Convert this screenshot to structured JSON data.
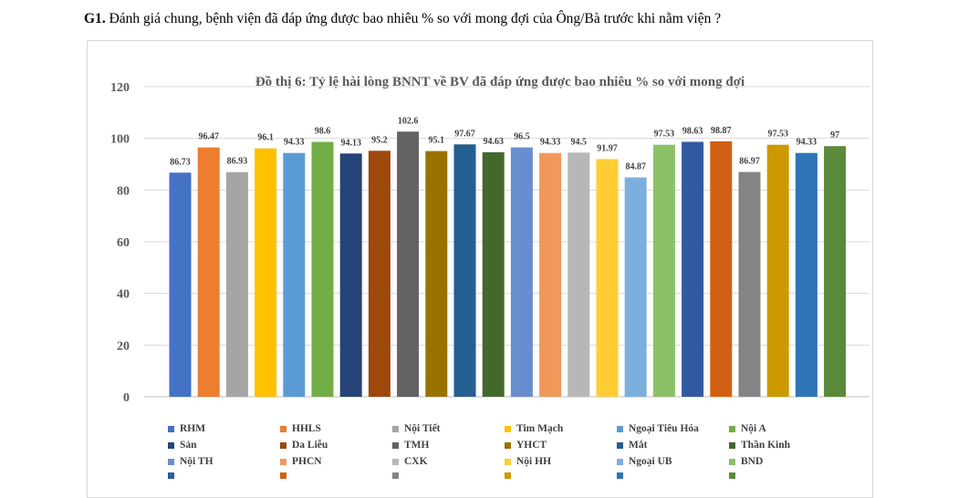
{
  "question": {
    "prefix": "G1",
    "dot": ".",
    "text": " Đánh giá chung, bệnh viện đã đáp ứng được bao nhiêu % so với mong đợi của Ông/Bà trước khi nằm viện ?"
  },
  "chart_data": {
    "type": "bar",
    "title": "Đồ thị 6: Tỷ lệ hài lòng BNNT về BV đã đáp ứng được bao nhiêu % so với mong đợi",
    "xlabel": "",
    "ylabel": "",
    "ylim": [
      0,
      120
    ],
    "yticks": [
      "0",
      "20",
      "40",
      "60",
      "80",
      "100",
      "120"
    ],
    "grid": true,
    "legend_position": "bottom",
    "categories": [
      "RHM",
      "HHLS",
      "Nội Tiết",
      "Tim Mạch",
      "Ngoại Tiêu Hóa",
      "Nội A",
      "Sản",
      "Da Liễu",
      "TMH",
      "YHCT",
      "Mắt",
      "Thần Kinh",
      "Nội TH",
      "PHCN",
      "CXK",
      "Nội HH",
      "Ngoại UB",
      "BND",
      "",
      "",
      "",
      "",
      "",
      ""
    ],
    "values": [
      86.73,
      96.47,
      86.93,
      96.1,
      94.33,
      98.6,
      94.13,
      95.2,
      102.6,
      95.1,
      97.67,
      94.63,
      96.5,
      94.33,
      94.5,
      91.97,
      84.87,
      97.53,
      98.63,
      98.87,
      86.97,
      97.53,
      94.33,
      97
    ],
    "labels": [
      "86.73",
      "96.47",
      "86.93",
      "96.1",
      "94.33",
      "98.6",
      "94.13",
      "95.2",
      "102.6",
      "95.1",
      "97.67",
      "94.63",
      "96.5",
      "94.33",
      "94.5",
      "91.97",
      "84.87",
      "97.53",
      "98.63",
      "98.87",
      "86.97",
      "97.53",
      "94.33",
      "97"
    ],
    "colors": [
      "#4472c4",
      "#ed7d31",
      "#a5a5a5",
      "#ffc000",
      "#5b9bd5",
      "#70ad47",
      "#264478",
      "#9e480e",
      "#636363",
      "#997300",
      "#255e91",
      "#43682b",
      "#698ed0",
      "#f1975a",
      "#b7b7b7",
      "#ffcd33",
      "#7cafdd",
      "#8cc168",
      "#335aa1",
      "#d26012",
      "#848484",
      "#cc9a00",
      "#2e75b6",
      "#5a8a3c"
    ]
  }
}
